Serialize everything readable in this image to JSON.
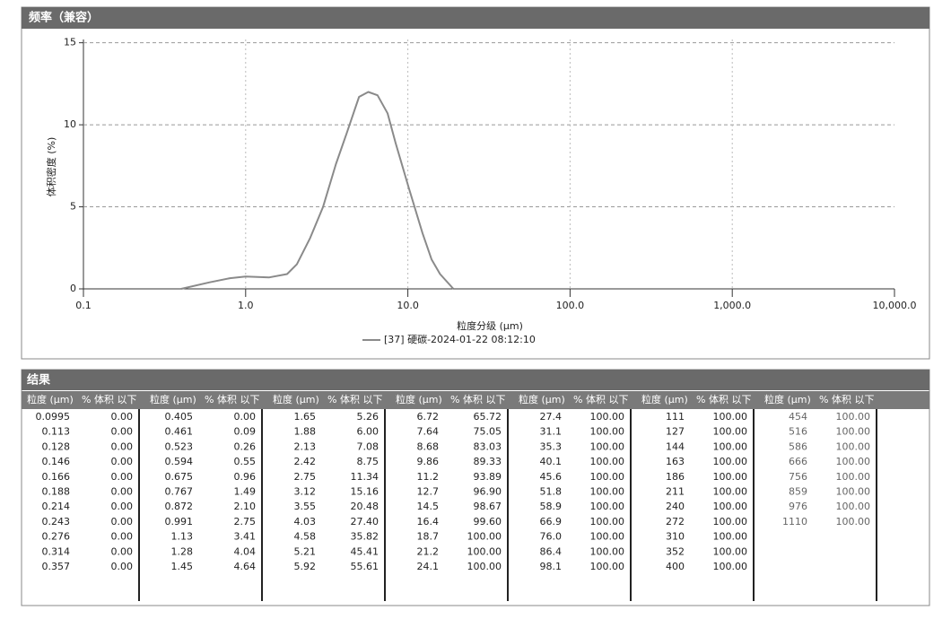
{
  "chart_data": {
    "type": "line",
    "title": "频率（兼容）",
    "xlabel": "粒度分级 (μm)",
    "ylabel": "体积密度 (%)",
    "xscale": "log",
    "grid": true,
    "xlim": [
      0.1,
      10000
    ],
    "xticks": [
      0.1,
      {
        "value": 1,
        "label": "1.0"
      },
      {
        "value": 10,
        "label": "10.0"
      },
      {
        "value": 100,
        "label": "100.0"
      },
      {
        "value": 1000,
        "label": "1,000.0"
      },
      {
        "value": 10000,
        "label": "10,000.0"
      }
    ],
    "ylim": [
      0,
      15.2
    ],
    "yticks": [
      0,
      5,
      10,
      15
    ],
    "x": [
      0.4,
      0.6,
      0.8,
      1.0,
      1.4,
      1.8,
      2.07,
      2.5,
      3.0,
      3.6,
      4.2,
      5.0,
      5.7,
      6.5,
      7.5,
      8.4,
      10.1,
      12.3,
      14.0,
      15.8,
      19.1
    ],
    "series": [
      {
        "name": "[37] 硬碳-2024-01-22 08:12:10",
        "color": "#8a8a8a",
        "values": [
          0,
          0.4,
          0.65,
          0.75,
          0.7,
          0.9,
          1.5,
          3.1,
          5.0,
          7.6,
          9.5,
          11.7,
          12.0,
          11.8,
          10.7,
          8.9,
          6.2,
          3.4,
          1.8,
          0.9,
          0
        ]
      }
    ]
  },
  "results": {
    "title": "结果",
    "headers": [
      "粒度 (μm)",
      "% 体积 以下"
    ],
    "groups": [
      {
        "size": [
          "0.0995",
          "0.113",
          "0.128",
          "0.146",
          "0.166",
          "0.188",
          "0.214",
          "0.243",
          "0.276",
          "0.314",
          "0.357"
        ],
        "volume": [
          "0.00",
          "0.00",
          "0.00",
          "0.00",
          "0.00",
          "0.00",
          "0.00",
          "0.00",
          "0.00",
          "0.00",
          "0.00"
        ]
      },
      {
        "size": [
          "0.405",
          "0.461",
          "0.523",
          "0.594",
          "0.675",
          "0.767",
          "0.872",
          "0.991",
          "1.13",
          "1.28",
          "1.45"
        ],
        "volume": [
          "0.00",
          "0.09",
          "0.26",
          "0.55",
          "0.96",
          "1.49",
          "2.10",
          "2.75",
          "3.41",
          "4.04",
          "4.64"
        ]
      },
      {
        "size": [
          "1.65",
          "1.88",
          "2.13",
          "2.42",
          "2.75",
          "3.12",
          "3.55",
          "4.03",
          "4.58",
          "5.21",
          "5.92"
        ],
        "volume": [
          "5.26",
          "6.00",
          "7.08",
          "8.75",
          "11.34",
          "15.16",
          "20.48",
          "27.40",
          "35.82",
          "45.41",
          "55.61"
        ]
      },
      {
        "size": [
          "6.72",
          "7.64",
          "8.68",
          "9.86",
          "11.2",
          "12.7",
          "14.5",
          "16.4",
          "18.7",
          "21.2",
          "24.1"
        ],
        "volume": [
          "65.72",
          "75.05",
          "83.03",
          "89.33",
          "93.89",
          "96.90",
          "98.67",
          "99.60",
          "100.00",
          "100.00",
          "100.00"
        ]
      },
      {
        "size": [
          "27.4",
          "31.1",
          "35.3",
          "40.1",
          "45.6",
          "51.8",
          "58.9",
          "66.9",
          "76.0",
          "86.4",
          "98.1"
        ],
        "volume": [
          "100.00",
          "100.00",
          "100.00",
          "100.00",
          "100.00",
          "100.00",
          "100.00",
          "100.00",
          "100.00",
          "100.00",
          "100.00"
        ]
      },
      {
        "size": [
          "111",
          "127",
          "144",
          "163",
          "186",
          "211",
          "240",
          "272",
          "310",
          "352",
          "400"
        ],
        "volume": [
          "100.00",
          "100.00",
          "100.00",
          "100.00",
          "100.00",
          "100.00",
          "100.00",
          "100.00",
          "100.00",
          "100.00",
          "100.00"
        ]
      },
      {
        "size": [
          "454",
          "516",
          "586",
          "666",
          "756",
          "859",
          "976",
          "1110"
        ],
        "volume": [
          "100.00",
          "100.00",
          "100.00",
          "100.00",
          "100.00",
          "100.00",
          "100.00",
          "100.00"
        ]
      }
    ]
  }
}
